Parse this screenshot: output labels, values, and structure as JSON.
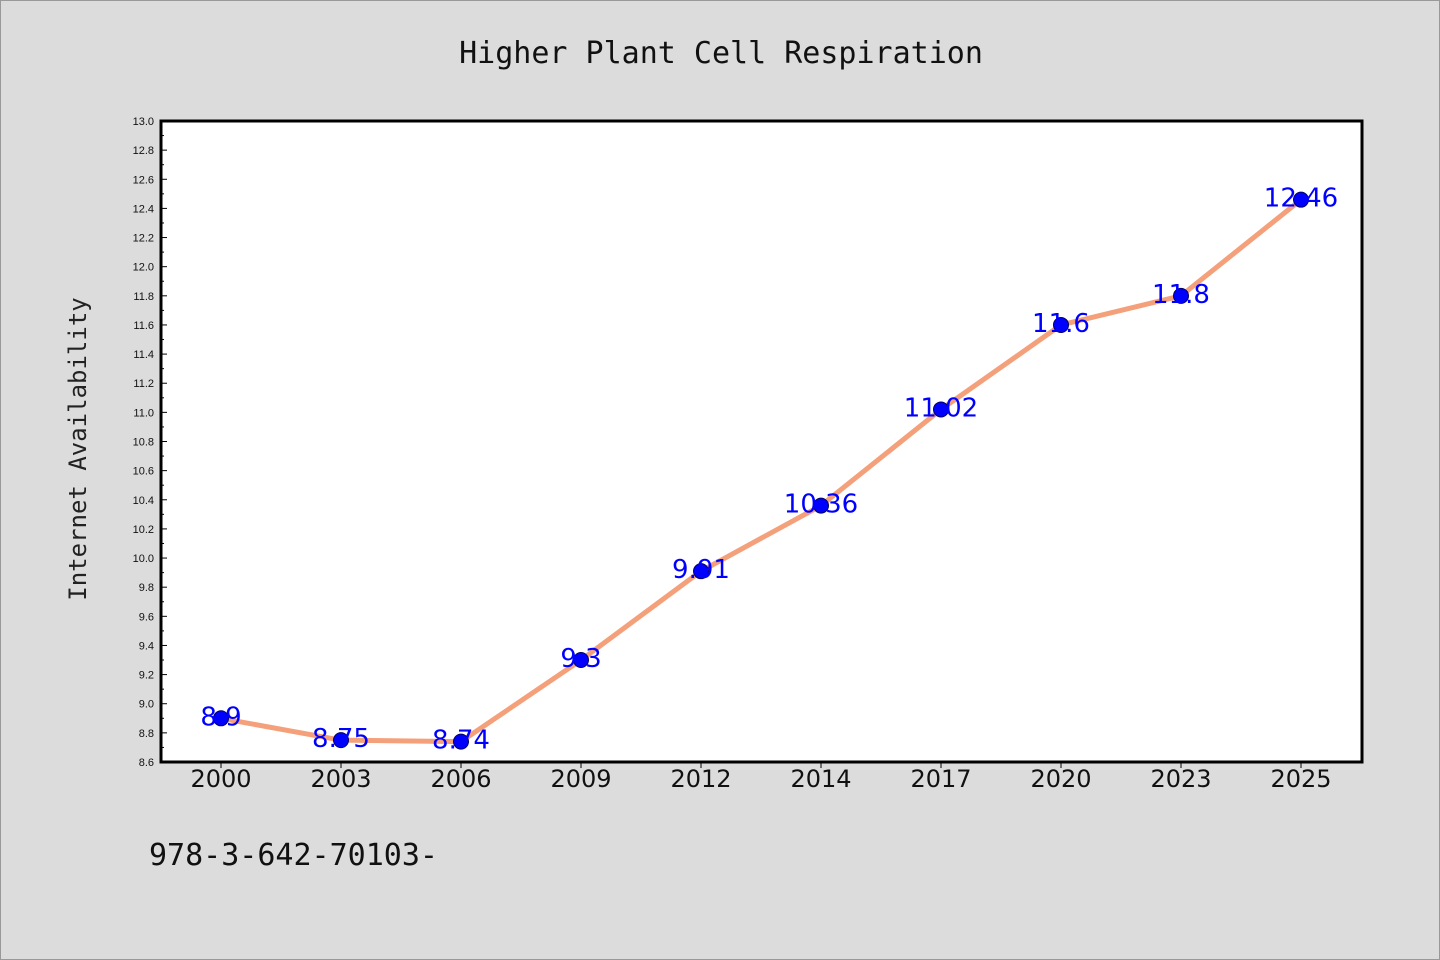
{
  "footnote": "978-3-642-70103-",
  "colors": {
    "background": "#dcdcdc",
    "plot_background": "#ffffff",
    "line": "#f4a07a",
    "marker": "#0000ff",
    "marker_edge": "#000066",
    "label": "#0000ff"
  },
  "chart_data": {
    "type": "line",
    "title": "Higher Plant Cell Respiration",
    "xlabel": "",
    "ylabel": "Internet Availability",
    "categories": [
      "2000",
      "2003",
      "2006",
      "2009",
      "2012",
      "2014",
      "2017",
      "2020",
      "2023",
      "2025"
    ],
    "series": [
      {
        "values": [
          8.9,
          8.75,
          8.74,
          9.3,
          9.91,
          10.36,
          11.02,
          11.6,
          11.8,
          12.46
        ],
        "labels": [
          "8.9",
          "8.75",
          "8.74",
          "9.3",
          "9.91",
          "10.36",
          "11.02",
          "11.6",
          "11.8",
          "12.46"
        ]
      }
    ],
    "ylim": [
      8.6,
      13.0
    ],
    "yticks": [
      "8.6",
      "8.8",
      "9.0",
      "9.2",
      "9.4",
      "9.6",
      "9.8",
      "10.0",
      "10.2",
      "10.4",
      "10.6",
      "10.8",
      "11.0",
      "11.2",
      "11.4",
      "11.6",
      "11.8",
      "12.0",
      "12.2",
      "12.4",
      "12.6",
      "12.8",
      "13.0"
    ],
    "grid": false,
    "legend": "none"
  }
}
